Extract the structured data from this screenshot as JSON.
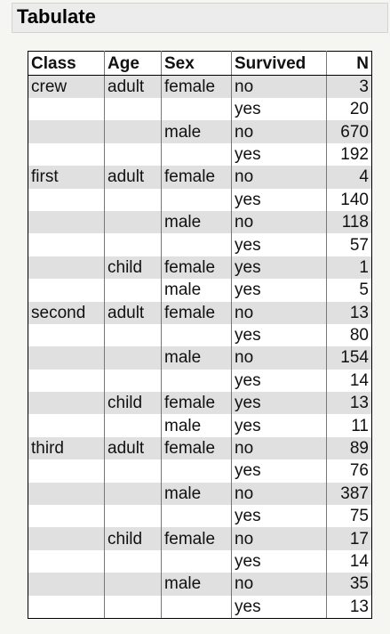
{
  "panel": {
    "title": "Tabulate"
  },
  "table": {
    "columns": [
      "Class",
      "Age",
      "Sex",
      "Survived",
      "N"
    ],
    "rows": [
      [
        "crew",
        "adult",
        "female",
        "no",
        "3"
      ],
      [
        "",
        "",
        "",
        "yes",
        "20"
      ],
      [
        "",
        "",
        "male",
        "no",
        "670"
      ],
      [
        "",
        "",
        "",
        "yes",
        "192"
      ],
      [
        "first",
        "adult",
        "female",
        "no",
        "4"
      ],
      [
        "",
        "",
        "",
        "yes",
        "140"
      ],
      [
        "",
        "",
        "male",
        "no",
        "118"
      ],
      [
        "",
        "",
        "",
        "yes",
        "57"
      ],
      [
        "",
        "child",
        "female",
        "yes",
        "1"
      ],
      [
        "",
        "",
        "male",
        "yes",
        "5"
      ],
      [
        "second",
        "adult",
        "female",
        "no",
        "13"
      ],
      [
        "",
        "",
        "",
        "yes",
        "80"
      ],
      [
        "",
        "",
        "male",
        "no",
        "154"
      ],
      [
        "",
        "",
        "",
        "yes",
        "14"
      ],
      [
        "",
        "child",
        "female",
        "yes",
        "13"
      ],
      [
        "",
        "",
        "male",
        "yes",
        "11"
      ],
      [
        "third",
        "adult",
        "female",
        "no",
        "89"
      ],
      [
        "",
        "",
        "",
        "yes",
        "76"
      ],
      [
        "",
        "",
        "male",
        "no",
        "387"
      ],
      [
        "",
        "",
        "",
        "yes",
        "75"
      ],
      [
        "",
        "child",
        "female",
        "no",
        "17"
      ],
      [
        "",
        "",
        "",
        "yes",
        "14"
      ],
      [
        "",
        "",
        "male",
        "no",
        "35"
      ],
      [
        "",
        "",
        "",
        "yes",
        "13"
      ]
    ]
  }
}
